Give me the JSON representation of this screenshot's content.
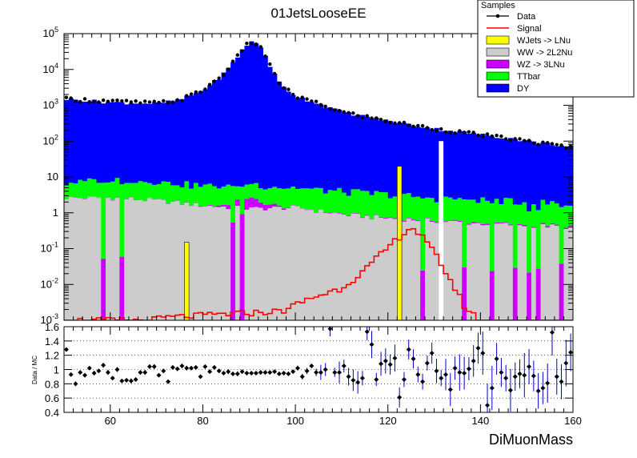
{
  "chart_data": {
    "type": "bar",
    "title": "01JetsLooseEE",
    "xlabel": "DiMuonMass",
    "xlim": [
      50,
      160
    ],
    "x_ticks": [
      60,
      80,
      100,
      120,
      140,
      160
    ],
    "main": {
      "yscale": "log",
      "ylim": [
        0.001,
        100000
      ],
      "y_ticks": [
        {
          "label": "10",
          "sup": "-3"
        },
        {
          "label": "10",
          "sup": "-2"
        },
        {
          "label": "10",
          "sup": "-1"
        },
        {
          "label": "1",
          "sup": ""
        },
        {
          "label": "10",
          "sup": ""
        },
        {
          "label": "10",
          "sup": "2"
        },
        {
          "label": "10",
          "sup": "3"
        },
        {
          "label": "10",
          "sup": "4"
        },
        {
          "label": "10",
          "sup": "5"
        }
      ]
    },
    "legend": {
      "title": "Samples",
      "placement": "top-right",
      "entries": [
        {
          "label": "Data",
          "style": "marker",
          "color": "#000000"
        },
        {
          "label": "Signal",
          "style": "line",
          "color": "#ff0000"
        },
        {
          "label": "WJets -> LNu",
          "style": "fill",
          "color": "#ffff00"
        },
        {
          "label": "WW -> 2L2Nu",
          "style": "fill",
          "color": "#cccccc"
        },
        {
          "label": "WZ -> 3LNu",
          "style": "fill",
          "color": "#cc00ff"
        },
        {
          "label": "TTbar",
          "style": "fill",
          "color": "#00ff00"
        },
        {
          "label": "DY",
          "style": "fill",
          "color": "#0000ff"
        }
      ]
    },
    "ratio": {
      "ylabel": "Data / MC",
      "ylim": [
        0.4,
        1.6
      ],
      "y_ticks": [
        "0.4",
        "0.6",
        "0.8",
        "1",
        "1.2",
        "1.4",
        "1.6"
      ],
      "gridlines": [
        0.6,
        0.8,
        1.0,
        1.2,
        1.4
      ]
    },
    "series": [
      {
        "name": "WW -> 2L2Nu",
        "color": "#cccccc",
        "anchors": [
          [
            50,
            2.6
          ],
          [
            60,
            2.6
          ],
          [
            70,
            2.2
          ],
          [
            80,
            1.6
          ],
          [
            90,
            1.3
          ],
          [
            100,
            1.4
          ],
          [
            110,
            0.9
          ],
          [
            120,
            0.7
          ],
          [
            130,
            0.6
          ],
          [
            140,
            0.5
          ],
          [
            150,
            0.45
          ],
          [
            160,
            0.4
          ]
        ],
        "dropouts": [
          58,
          62,
          86,
          88,
          127,
          136,
          142,
          147,
          150,
          152,
          157
        ]
      },
      {
        "name": "WZ -> 3LNu",
        "color": "#cc00ff",
        "anchors": [
          [
            50,
            0.05
          ],
          [
            80,
            0.05
          ],
          [
            84,
            0.2
          ],
          [
            88,
            0.8
          ],
          [
            90,
            1.5
          ],
          [
            92,
            0.9
          ],
          [
            96,
            0.2
          ],
          [
            100,
            0.03
          ],
          [
            160,
            0.03
          ]
        ]
      },
      {
        "name": "TTbar",
        "color": "#00ff00",
        "anchors": [
          [
            50,
            4
          ],
          [
            60,
            6
          ],
          [
            70,
            5
          ],
          [
            80,
            4
          ],
          [
            90,
            4
          ],
          [
            100,
            3.5
          ],
          [
            110,
            3
          ],
          [
            120,
            2.5
          ],
          [
            130,
            2
          ],
          [
            140,
            1.8
          ],
          [
            150,
            1.5
          ],
          [
            160,
            1.3
          ]
        ]
      },
      {
        "name": "DY",
        "color": "#0000ff",
        "anchors": [
          [
            50,
            1500
          ],
          [
            60,
            1200
          ],
          [
            70,
            1100
          ],
          [
            75,
            1400
          ],
          [
            80,
            2600
          ],
          [
            84,
            6500
          ],
          [
            87,
            18000
          ],
          [
            89,
            45000
          ],
          [
            91,
            62000
          ],
          [
            93,
            35000
          ],
          [
            95,
            9000
          ],
          [
            97,
            3500
          ],
          [
            100,
            1800
          ],
          [
            105,
            1100
          ],
          [
            110,
            650
          ],
          [
            120,
            360
          ],
          [
            130,
            220
          ],
          [
            140,
            150
          ],
          [
            150,
            100
          ],
          [
            160,
            65
          ]
        ]
      },
      {
        "name": "WJets -> LNu",
        "color": "#ffff00",
        "spikes": [
          [
            76.5,
            0.15
          ],
          [
            122.5,
            20
          ]
        ]
      },
      {
        "name": "Signal",
        "color": "#ff0000",
        "anchors": [
          [
            50,
            0.001
          ],
          [
            68,
            0.001
          ],
          [
            72,
            0.0012
          ],
          [
            85,
            0.0015
          ],
          [
            97,
            0.0018
          ],
          [
            103,
            0.004
          ],
          [
            110,
            0.008
          ],
          [
            115,
            0.025
          ],
          [
            119,
            0.08
          ],
          [
            123,
            0.25
          ],
          [
            125,
            0.4
          ],
          [
            127,
            0.25
          ],
          [
            131,
            0.05
          ],
          [
            134,
            0.01
          ],
          [
            137,
            0.002
          ],
          [
            140,
            0.001
          ]
        ]
      },
      {
        "name": "Data",
        "anchors": [
          [
            50,
            1500
          ],
          [
            60,
            1300
          ],
          [
            70,
            1150
          ],
          [
            75,
            1400
          ],
          [
            80,
            2600
          ],
          [
            84,
            6500
          ],
          [
            87,
            18000
          ],
          [
            89,
            45000
          ],
          [
            91,
            62000
          ],
          [
            93,
            35000
          ],
          [
            95,
            9000
          ],
          [
            97,
            3500
          ],
          [
            100,
            1800
          ],
          [
            105,
            1100
          ],
          [
            110,
            650
          ],
          [
            120,
            360
          ],
          [
            130,
            220
          ],
          [
            140,
            150
          ],
          [
            150,
            100
          ],
          [
            160,
            65
          ]
        ]
      }
    ],
    "ratio_points": [
      [
        50.5,
        1.28
      ],
      [
        51.5,
        0.93
      ],
      [
        52.5,
        0.8
      ],
      [
        53.5,
        0.96
      ],
      [
        54.5,
        0.92
      ],
      [
        55.5,
        1.02
      ],
      [
        56.5,
        0.95
      ],
      [
        57.5,
        0.98
      ],
      [
        58.5,
        1.06
      ],
      [
        59.5,
        0.96
      ],
      [
        60.5,
        0.88
      ],
      [
        61.5,
        1.0
      ],
      [
        62.5,
        0.84
      ],
      [
        63.5,
        0.85
      ],
      [
        64.5,
        0.84
      ],
      [
        65.5,
        0.86
      ],
      [
        66.5,
        0.96
      ],
      [
        67.5,
        0.96
      ],
      [
        68.5,
        1.04
      ],
      [
        69.5,
        1.04
      ],
      [
        70.5,
        0.92
      ],
      [
        71.5,
        0.98
      ],
      [
        72.5,
        0.83
      ],
      [
        73.5,
        1.03
      ],
      [
        74.5,
        1.01
      ],
      [
        75.5,
        1.05
      ],
      [
        76.5,
        1.02
      ],
      [
        77.5,
        1.02
      ],
      [
        78.5,
        1.03
      ],
      [
        79.5,
        0.9
      ],
      [
        80.5,
        1.04
      ],
      [
        81.5,
        0.97
      ],
      [
        82.5,
        1.03
      ],
      [
        83.5,
        0.98
      ],
      [
        84.5,
        0.95
      ],
      [
        85.5,
        0.97
      ],
      [
        86.5,
        0.94
      ],
      [
        87.5,
        0.94
      ],
      [
        88.5,
        0.97
      ],
      [
        89.5,
        0.95
      ],
      [
        90.5,
        0.95
      ],
      [
        91.5,
        0.95
      ],
      [
        92.5,
        0.96
      ],
      [
        93.5,
        0.96
      ],
      [
        94.5,
        0.96
      ],
      [
        95.5,
        0.97
      ],
      [
        96.5,
        0.94
      ],
      [
        97.5,
        0.95
      ],
      [
        98.5,
        0.94
      ],
      [
        99.5,
        0.97
      ],
      [
        100.5,
        1.02
      ],
      [
        101.5,
        0.9
      ],
      [
        102.5,
        0.98
      ],
      [
        103.5,
        1.05
      ],
      [
        104.5,
        0.96
      ],
      [
        105.5,
        0.96
      ],
      [
        106.5,
        1.0
      ],
      [
        107.5,
        1.57
      ],
      [
        108.5,
        0.96
      ],
      [
        109.5,
        0.96
      ],
      [
        110.5,
        1.05
      ],
      [
        111.5,
        0.9
      ],
      [
        112.5,
        0.85
      ],
      [
        113.5,
        0.82
      ],
      [
        114.5,
        0.88
      ],
      [
        115.5,
        1.53
      ],
      [
        116.5,
        1.35
      ],
      [
        117.5,
        0.86
      ],
      [
        118.5,
        1.08
      ],
      [
        119.5,
        1.12
      ],
      [
        120.5,
        1.07
      ],
      [
        121.5,
        1.16
      ],
      [
        122.5,
        0.61
      ],
      [
        123.5,
        0.86
      ],
      [
        124.5,
        1.28
      ],
      [
        125.5,
        1.15
      ],
      [
        126.5,
        0.93
      ],
      [
        127.5,
        0.83
      ],
      [
        128.5,
        1.09
      ],
      [
        129.5,
        1.23
      ],
      [
        130.5,
        0.98
      ],
      [
        131.5,
        0.88
      ],
      [
        132.5,
        0.93
      ],
      [
        133.5,
        0.72
      ],
      [
        134.5,
        1.02
      ],
      [
        135.5,
        0.96
      ],
      [
        136.5,
        0.95
      ],
      [
        137.5,
        1.01
      ],
      [
        138.5,
        1.12
      ],
      [
        139.5,
        1.3
      ],
      [
        140.5,
        1.23
      ],
      [
        141.5,
        0.5
      ],
      [
        142.5,
        0.74
      ],
      [
        143.5,
        1.15
      ],
      [
        144.5,
        0.96
      ],
      [
        145.5,
        0.88
      ],
      [
        146.5,
        0.71
      ],
      [
        147.5,
        0.9
      ],
      [
        148.5,
        0.94
      ],
      [
        149.5,
        0.92
      ],
      [
        150.5,
        1.04
      ],
      [
        151.5,
        0.91
      ],
      [
        152.5,
        0.7
      ],
      [
        153.5,
        0.74
      ],
      [
        154.5,
        0.81
      ],
      [
        155.5,
        1.52
      ],
      [
        156.5,
        0.9
      ],
      [
        157.5,
        0.83
      ],
      [
        158.5,
        1.09
      ],
      [
        159.5,
        1.24
      ]
    ]
  }
}
